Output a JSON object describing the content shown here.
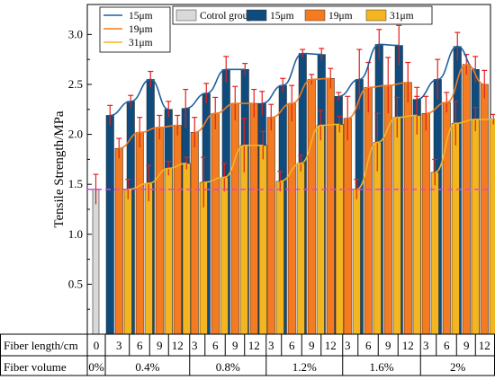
{
  "chart_data": {
    "type": "bar",
    "ylabel": "Tensile Strength/MPa",
    "ylim": [
      0,
      3.3
    ],
    "yticks": [
      0.5,
      1.0,
      1.5,
      2.0,
      2.5,
      3.0
    ],
    "ytick_labels": [
      "0.5",
      "1.0",
      "1.5",
      "2.0",
      "2.5",
      "3.0"
    ],
    "reference_line": {
      "y": 1.45,
      "style": "dashed",
      "color": "#e83ce8"
    },
    "control": {
      "name": "Cotrol group",
      "value": 1.45,
      "error": 0.15,
      "length_label": "0",
      "volume_label": "0%"
    },
    "groups": [
      {
        "volume": "0.4%"
      },
      {
        "volume": "0.8%"
      },
      {
        "volume": "1.2%"
      },
      {
        "volume": "1.6%"
      },
      {
        "volume": "2%"
      }
    ],
    "lengths": [
      "3",
      "6",
      "9",
      "12"
    ],
    "series": [
      {
        "name": "15μm",
        "color": "#0f4c7d",
        "values": [
          [
            2.19,
            2.33,
            2.55,
            2.25
          ],
          [
            2.26,
            2.41,
            2.65,
            2.65
          ],
          [
            2.31,
            2.49,
            2.81,
            2.8
          ],
          [
            2.38,
            2.55,
            2.9,
            2.89
          ],
          [
            2.35,
            2.55,
            2.88,
            2.65
          ]
        ],
        "errors": [
          [
            0.1,
            0.06,
            0.08,
            0.08
          ],
          [
            0.19,
            0.1,
            0.13,
            0.06
          ],
          [
            0.12,
            0.07,
            0.04,
            0.06
          ],
          [
            0.04,
            0.3,
            0.15,
            0.2
          ],
          [
            0.12,
            0.2,
            0.14,
            0.13
          ]
        ]
      },
      {
        "name": "19μm",
        "color": "#f47b20",
        "values": [
          [
            1.86,
            2.02,
            2.07,
            2.09
          ],
          [
            2.02,
            2.21,
            2.31,
            2.31
          ],
          [
            2.17,
            2.31,
            2.55,
            2.56
          ],
          [
            2.16,
            2.47,
            2.49,
            2.52
          ],
          [
            2.21,
            2.32,
            2.7,
            2.5
          ]
        ],
        "errors": [
          [
            0.1,
            0.15,
            0.12,
            0.1
          ],
          [
            0.15,
            0.16,
            0.17,
            0.14
          ],
          [
            0.13,
            0.18,
            0.05,
            0.1
          ],
          [
            0.22,
            0.25,
            0.28,
            0.2
          ],
          [
            0.17,
            0.1,
            0.1,
            0.14
          ]
        ]
      },
      {
        "name": "31μm",
        "color": "#f5b520",
        "values": [
          [
            1.45,
            1.51,
            1.66,
            1.71
          ],
          [
            1.52,
            1.57,
            1.89,
            1.89
          ],
          [
            1.53,
            1.71,
            2.09,
            2.1
          ],
          [
            1.45,
            1.92,
            2.17,
            2.19
          ],
          [
            1.62,
            2.11,
            2.15,
            2.15
          ]
        ],
        "errors": [
          [
            0.1,
            0.18,
            0.07,
            0.06
          ],
          [
            0.25,
            0.14,
            0.27,
            0.14
          ],
          [
            0.1,
            0.08,
            0.15,
            0.08
          ],
          [
            0.1,
            0.29,
            0.2,
            0.19
          ],
          [
            0.13,
            0.22,
            0.12,
            0.05
          ]
        ]
      }
    ],
    "legend_lines": [
      "15μm",
      "19μm",
      "31μm"
    ],
    "legend_bars": [
      "Cotrol group",
      "15μm",
      "19μm",
      "31μm"
    ],
    "table": {
      "row1_label": "Fiber length/cm",
      "row2_label": "Fiber volume"
    }
  }
}
